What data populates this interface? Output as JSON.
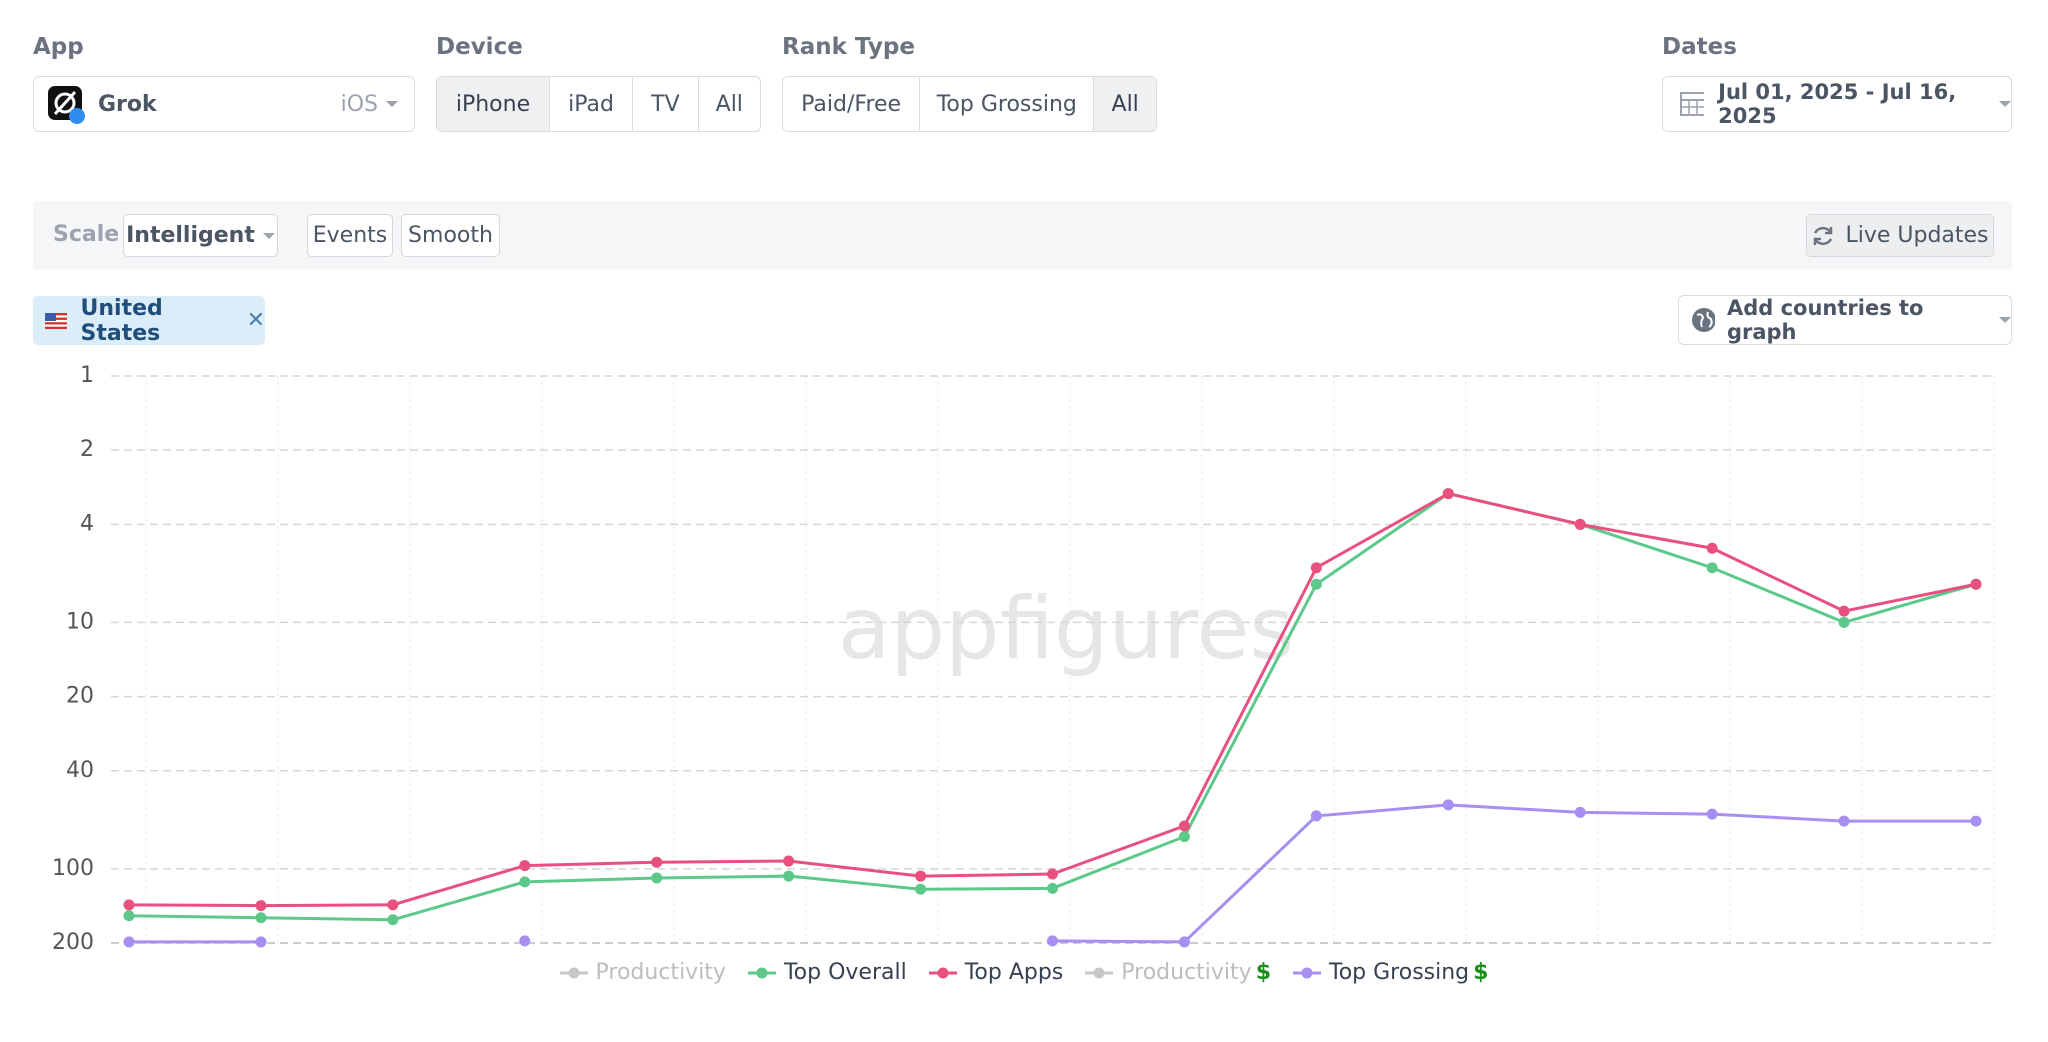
{
  "filters": {
    "app_label": "App",
    "app_name": "Grok",
    "platform": "iOS",
    "device_label": "Device",
    "devices": [
      "iPhone",
      "iPad",
      "TV",
      "All"
    ],
    "device_selected": 0,
    "rank_type_label": "Rank Type",
    "rank_types": [
      "Paid/Free",
      "Top Grossing",
      "All"
    ],
    "rank_type_selected": 2,
    "dates_label": "Dates",
    "dates": "Jul 01, 2025 - Jul 16, 2025"
  },
  "toolbar": {
    "scale_label": "Scale",
    "scale": "Intelligent",
    "buttons": [
      "Events",
      "Smooth"
    ],
    "live_updates": "Live Updates"
  },
  "countries": {
    "selected": [
      "United States"
    ],
    "add": "Add countries to graph"
  },
  "chart_data": {
    "type": "line",
    "watermark": "appfigures",
    "log_scale": true,
    "y_inverted": true,
    "grid": true,
    "categories": [
      null,
      null,
      null,
      null,
      null,
      null,
      null,
      null,
      null,
      null,
      null,
      null,
      null,
      null,
      null
    ],
    "ylim": [
      1,
      200
    ],
    "yticks": [
      1,
      2,
      4,
      10,
      20,
      40,
      100,
      200
    ],
    "series": [
      {
        "name": "Productivity",
        "color": "#c8c8c8",
        "disabled": true,
        "values": [
          null,
          null,
          null,
          null,
          null,
          null,
          null,
          null,
          null,
          null,
          null,
          null,
          null,
          null,
          null
        ]
      },
      {
        "name": "Top Overall",
        "color": "#5cc98a",
        "values": [
          155,
          158,
          161,
          113,
          109,
          107,
          121,
          120,
          74,
          7,
          3,
          4,
          6,
          10,
          7
        ]
      },
      {
        "name": "Top Apps",
        "color": "#e8507e",
        "values": [
          140,
          141,
          140,
          97,
          94,
          93,
          107,
          105,
          67,
          6,
          3,
          4,
          5,
          9,
          7
        ]
      },
      {
        "name": "Productivity",
        "currency_mark": "$",
        "color": "#c8c8c8",
        "disabled": true,
        "values": [
          null,
          null,
          null,
          null,
          null,
          null,
          null,
          null,
          null,
          null,
          null,
          null,
          null,
          null,
          null
        ]
      },
      {
        "name": "Top Grossing",
        "currency_mark": "$",
        "color": "#a68ff0",
        "values": [
          198,
          198,
          null,
          196,
          null,
          null,
          null,
          196,
          198,
          61,
          55,
          59,
          60,
          64,
          64
        ]
      }
    ]
  }
}
